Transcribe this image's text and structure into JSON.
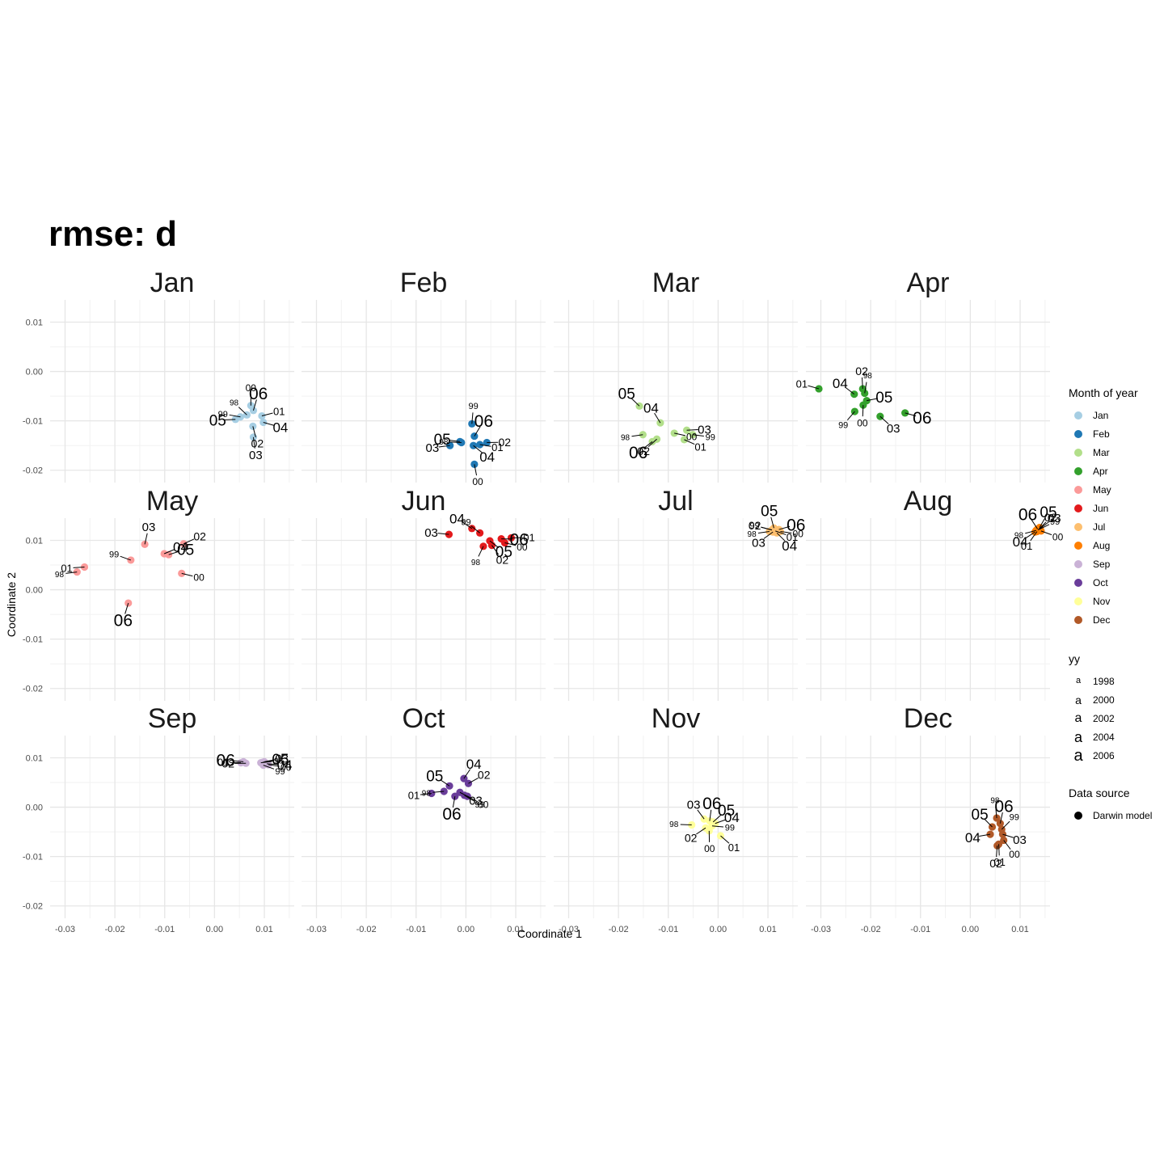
{
  "title": "rmse: d",
  "chart_data": {
    "type": "scatter",
    "xlabel": "Coordinate 1",
    "ylabel": "Coordinate 2",
    "xlim": [
      -0.033,
      0.016
    ],
    "ylim": [
      -0.0225,
      0.0145
    ],
    "x_ticks": [
      -0.03,
      -0.02,
      -0.01,
      0.0,
      0.01
    ],
    "x_tick_labels": [
      "-0.03",
      "-0.02",
      "-0.01",
      "0.00",
      "0.01"
    ],
    "y_ticks": [
      -0.02,
      -0.01,
      0.0,
      0.01
    ],
    "y_tick_labels": [
      "-0.02",
      "-0.01",
      "0.00",
      "0.01"
    ],
    "grid": true,
    "legend_position": "right",
    "panels": [
      {
        "name": "Jan",
        "color": "#A6CEE3",
        "points": [
          {
            "year": "98",
            "x": 0.0065,
            "y": -0.0088
          },
          {
            "year": "99",
            "x": 0.0052,
            "y": -0.0092
          },
          {
            "year": "00",
            "x": 0.0073,
            "y": -0.0069
          },
          {
            "year": "01",
            "x": 0.0095,
            "y": -0.009
          },
          {
            "year": "02",
            "x": 0.0077,
            "y": -0.0111
          },
          {
            "year": "03",
            "x": 0.0078,
            "y": -0.0133
          },
          {
            "year": "04",
            "x": 0.0098,
            "y": -0.0103
          },
          {
            "year": "05",
            "x": 0.0042,
            "y": -0.0097
          },
          {
            "year": "06",
            "x": 0.0078,
            "y": -0.0079
          }
        ]
      },
      {
        "name": "Feb",
        "color": "#1F78B4",
        "points": [
          {
            "year": "98",
            "x": -0.0009,
            "y": -0.0144
          },
          {
            "year": "99",
            "x": 0.0012,
            "y": -0.0106
          },
          {
            "year": "00",
            "x": 0.0017,
            "y": -0.0188
          },
          {
            "year": "01",
            "x": 0.0028,
            "y": -0.0148
          },
          {
            "year": "02",
            "x": 0.0042,
            "y": -0.0144
          },
          {
            "year": "03",
            "x": -0.0032,
            "y": -0.015
          },
          {
            "year": "04",
            "x": 0.0015,
            "y": -0.015
          },
          {
            "year": "05",
            "x": -0.0012,
            "y": -0.0142
          },
          {
            "year": "06",
            "x": 0.0017,
            "y": -0.0131
          }
        ]
      },
      {
        "name": "Mar",
        "color": "#B2DF8A",
        "points": [
          {
            "year": "98",
            "x": -0.0151,
            "y": -0.0128
          },
          {
            "year": "99",
            "x": -0.0051,
            "y": -0.0128
          },
          {
            "year": "00",
            "x": -0.0088,
            "y": -0.0125
          },
          {
            "year": "01",
            "x": -0.0068,
            "y": -0.0138
          },
          {
            "year": "02",
            "x": -0.0123,
            "y": -0.0137
          },
          {
            "year": "03",
            "x": -0.0063,
            "y": -0.0119
          },
          {
            "year": "04",
            "x": -0.0116,
            "y": -0.0104
          },
          {
            "year": "05",
            "x": -0.0158,
            "y": -0.007
          },
          {
            "year": "06",
            "x": -0.0132,
            "y": -0.0142
          }
        ]
      },
      {
        "name": "Apr",
        "color": "#33A02C",
        "points": [
          {
            "year": "98",
            "x": -0.0212,
            "y": -0.0044
          },
          {
            "year": "99",
            "x": -0.0232,
            "y": -0.0081
          },
          {
            "year": "00",
            "x": -0.0215,
            "y": -0.0068
          },
          {
            "year": "01",
            "x": -0.0304,
            "y": -0.0035
          },
          {
            "year": "02",
            "x": -0.0216,
            "y": -0.0035
          },
          {
            "year": "03",
            "x": -0.0181,
            "y": -0.0091
          },
          {
            "year": "04",
            "x": -0.0233,
            "y": -0.0046
          },
          {
            "year": "05",
            "x": -0.0208,
            "y": -0.0059
          },
          {
            "year": "06",
            "x": -0.0131,
            "y": -0.0084
          }
        ]
      },
      {
        "name": "May",
        "color": "#FB9A99",
        "points": [
          {
            "year": "98",
            "x": -0.0276,
            "y": 0.0036
          },
          {
            "year": "99",
            "x": -0.0168,
            "y": 0.006
          },
          {
            "year": "00",
            "x": -0.0066,
            "y": 0.0033
          },
          {
            "year": "01",
            "x": -0.0261,
            "y": 0.0046
          },
          {
            "year": "02",
            "x": -0.0062,
            "y": 0.0093
          },
          {
            "year": "03",
            "x": -0.014,
            "y": 0.0092
          },
          {
            "year": "04",
            "x": -0.0101,
            "y": 0.0073
          },
          {
            "year": "05",
            "x": -0.0092,
            "y": 0.0071
          },
          {
            "year": "06",
            "x": -0.0173,
            "y": -0.0027
          }
        ]
      },
      {
        "name": "Jun",
        "color": "#E31A1C",
        "points": [
          {
            "year": "98",
            "x": 0.0035,
            "y": 0.0088
          },
          {
            "year": "99",
            "x": 0.0028,
            "y": 0.0115
          },
          {
            "year": "00",
            "x": 0.0078,
            "y": 0.0095
          },
          {
            "year": "01",
            "x": 0.0091,
            "y": 0.0105
          },
          {
            "year": "02",
            "x": 0.0052,
            "y": 0.009
          },
          {
            "year": "03",
            "x": -0.0034,
            "y": 0.0112
          },
          {
            "year": "04",
            "x": 0.0012,
            "y": 0.0124
          },
          {
            "year": "05",
            "x": 0.0048,
            "y": 0.0099
          },
          {
            "year": "06",
            "x": 0.0071,
            "y": 0.0103
          }
        ]
      },
      {
        "name": "Jul",
        "color": "#FDBF6F",
        "points": [
          {
            "year": "98",
            "x": 0.0103,
            "y": 0.0118
          },
          {
            "year": "99",
            "x": 0.0108,
            "y": 0.0121
          },
          {
            "year": "00",
            "x": 0.0125,
            "y": 0.0118
          },
          {
            "year": "01",
            "x": 0.0115,
            "y": 0.0119
          },
          {
            "year": "02",
            "x": 0.0108,
            "y": 0.0121
          },
          {
            "year": "03",
            "x": 0.011,
            "y": 0.0117
          },
          {
            "year": "04",
            "x": 0.0118,
            "y": 0.0115
          },
          {
            "year": "05",
            "x": 0.0112,
            "y": 0.0125
          },
          {
            "year": "06",
            "x": 0.0122,
            "y": 0.0122
          }
        ]
      },
      {
        "name": "Aug",
        "color": "#FF7F00",
        "points": [
          {
            "year": "98",
            "x": 0.0132,
            "y": 0.012
          },
          {
            "year": "99",
            "x": 0.0138,
            "y": 0.0122
          },
          {
            "year": "00",
            "x": 0.0142,
            "y": 0.0119
          },
          {
            "year": "01",
            "x": 0.0134,
            "y": 0.0118
          },
          {
            "year": "02",
            "x": 0.0136,
            "y": 0.0121
          },
          {
            "year": "03",
            "x": 0.014,
            "y": 0.0124
          },
          {
            "year": "04",
            "x": 0.013,
            "y": 0.0117
          },
          {
            "year": "05",
            "x": 0.0139,
            "y": 0.0126
          },
          {
            "year": "06",
            "x": 0.0135,
            "y": 0.0123
          }
        ]
      },
      {
        "name": "Sep",
        "color": "#CAB2D6",
        "points": [
          {
            "year": "98",
            "x": 0.0093,
            "y": 0.009
          },
          {
            "year": "99",
            "x": 0.0098,
            "y": 0.0085
          },
          {
            "year": "00",
            "x": 0.0108,
            "y": 0.0086
          },
          {
            "year": "01",
            "x": 0.0053,
            "y": 0.009
          },
          {
            "year": "02",
            "x": 0.0063,
            "y": 0.0089
          },
          {
            "year": "03",
            "x": 0.01,
            "y": 0.0092
          },
          {
            "year": "04",
            "x": 0.0105,
            "y": 0.0088
          },
          {
            "year": "05",
            "x": 0.0097,
            "y": 0.0091
          },
          {
            "year": "06",
            "x": 0.0058,
            "y": 0.0092
          }
        ]
      },
      {
        "name": "Oct",
        "color": "#6A3D9A",
        "points": [
          {
            "year": "98",
            "x": -0.0044,
            "y": 0.0032
          },
          {
            "year": "99",
            "x": -0.0003,
            "y": 0.0024
          },
          {
            "year": "00",
            "x": 0.0003,
            "y": 0.0022
          },
          {
            "year": "01",
            "x": -0.0069,
            "y": 0.0028
          },
          {
            "year": "02",
            "x": 0.0005,
            "y": 0.0048
          },
          {
            "year": "03",
            "x": -0.0012,
            "y": 0.003
          },
          {
            "year": "04",
            "x": -0.0004,
            "y": 0.0058
          },
          {
            "year": "05",
            "x": -0.0033,
            "y": 0.0043
          },
          {
            "year": "06",
            "x": -0.0022,
            "y": 0.0022
          }
        ]
      },
      {
        "name": "Nov",
        "color": "#FFFF99",
        "points": [
          {
            "year": "98",
            "x": -0.0053,
            "y": -0.0036
          },
          {
            "year": "99",
            "x": -0.0012,
            "y": -0.0038
          },
          {
            "year": "00",
            "x": -0.0018,
            "y": -0.0048
          },
          {
            "year": "01",
            "x": 0.0005,
            "y": -0.0058
          },
          {
            "year": "02",
            "x": -0.0025,
            "y": -0.0042
          },
          {
            "year": "03",
            "x": -0.0028,
            "y": -0.0024
          },
          {
            "year": "04",
            "x": -0.0006,
            "y": -0.0033
          },
          {
            "year": "05",
            "x": -0.001,
            "y": -0.003
          },
          {
            "year": "06",
            "x": -0.0017,
            "y": -0.0028
          }
        ]
      },
      {
        "name": "Dec",
        "color": "#B15928",
        "points": [
          {
            "year": "98",
            "x": 0.0053,
            "y": -0.0022
          },
          {
            "year": "99",
            "x": 0.0063,
            "y": -0.0045
          },
          {
            "year": "00",
            "x": 0.0067,
            "y": -0.0067
          },
          {
            "year": "01",
            "x": 0.0057,
            "y": -0.0075
          },
          {
            "year": "02",
            "x": 0.0054,
            "y": -0.0078
          },
          {
            "year": "03",
            "x": 0.0065,
            "y": -0.0055
          },
          {
            "year": "04",
            "x": 0.004,
            "y": -0.0055
          },
          {
            "year": "05",
            "x": 0.0044,
            "y": -0.004
          },
          {
            "year": "06",
            "x": 0.006,
            "y": -0.0033
          }
        ]
      }
    ]
  },
  "legend": {
    "month": {
      "title": "Month of year",
      "items": [
        {
          "label": "Jan",
          "color": "#A6CEE3"
        },
        {
          "label": "Feb",
          "color": "#1F78B4"
        },
        {
          "label": "Mar",
          "color": "#B2DF8A"
        },
        {
          "label": "Apr",
          "color": "#33A02C"
        },
        {
          "label": "May",
          "color": "#FB9A99"
        },
        {
          "label": "Jun",
          "color": "#E31A1C"
        },
        {
          "label": "Jul",
          "color": "#FDBF6F"
        },
        {
          "label": "Aug",
          "color": "#FF7F00"
        },
        {
          "label": "Sep",
          "color": "#CAB2D6"
        },
        {
          "label": "Oct",
          "color": "#6A3D9A"
        },
        {
          "label": "Nov",
          "color": "#FFFF99"
        },
        {
          "label": "Dec",
          "color": "#B15928"
        }
      ]
    },
    "yy": {
      "title": "yy",
      "glyph": "a",
      "items": [
        "1998",
        "2000",
        "2002",
        "2004",
        "2006"
      ]
    },
    "source": {
      "title": "Data source",
      "items": [
        {
          "label": "Darwin model",
          "color": "#000000"
        }
      ]
    }
  }
}
